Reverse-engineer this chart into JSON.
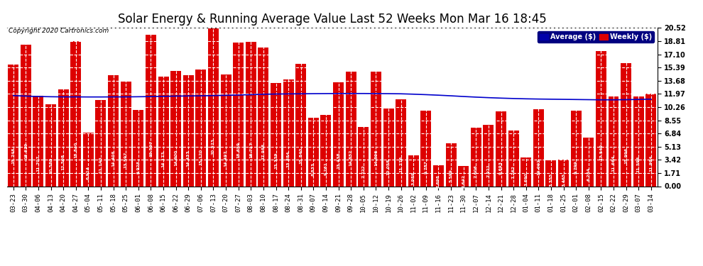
{
  "title": "Solar Energy & Running Average Value Last 52 Weeks Mon Mar 16 18:45",
  "copyright": "Copyright 2020 Cartronics.com",
  "legend_labels": [
    "Average ($)",
    "Weekly ($)"
  ],
  "legend_colors": [
    "#0000aa",
    "#dd0000"
  ],
  "bar_color": "#dd0000",
  "avg_line_color": "#0000cc",
  "background_color": "#ffffff",
  "grid_color": "#aaaaaa",
  "categories": [
    "03-23",
    "03-30",
    "04-06",
    "04-13",
    "04-20",
    "04-27",
    "05-04",
    "05-11",
    "05-18",
    "05-25",
    "06-01",
    "06-08",
    "06-15",
    "06-22",
    "06-29",
    "07-06",
    "07-13",
    "07-20",
    "07-27",
    "08-03",
    "08-10",
    "08-17",
    "08-24",
    "08-31",
    "09-07",
    "09-14",
    "09-21",
    "09-28",
    "10-05",
    "10-12",
    "10-19",
    "10-26",
    "11-02",
    "11-09",
    "11-16",
    "11-23",
    "11-30",
    "12-07",
    "12-14",
    "12-21",
    "12-28",
    "01-04",
    "01-11",
    "01-18",
    "01-25",
    "02-01",
    "02-08",
    "02-15",
    "02-22",
    "02-29",
    "03-07",
    "03-14"
  ],
  "weekly_values": [
    15.748,
    18.329,
    11.707,
    10.58,
    12.508,
    18.84,
    6.914,
    11.14,
    14.408,
    13.597,
    9.928,
    19.597,
    14.173,
    14.9,
    14.433,
    15.12,
    20.523,
    14.497,
    18.659,
    18.717,
    17.988,
    13.339,
    13.884,
    15.84,
    8.833,
    9.261,
    13.438,
    14.852,
    7.722,
    14.896,
    10.058,
    11.276,
    3.989,
    9.787,
    2.698,
    5.599,
    2.642,
    7.606,
    7.921,
    9.693,
    7.262,
    3.69,
    10.002,
    3.355,
    3.465,
    9.799,
    6.284,
    17.549,
    11.664,
    15.996,
    11.594,
    11.994
  ],
  "avg_values": [
    11.75,
    11.68,
    11.63,
    11.6,
    11.58,
    11.58,
    11.57,
    11.57,
    11.58,
    11.58,
    11.6,
    11.62,
    11.65,
    11.68,
    11.7,
    11.72,
    11.75,
    11.78,
    11.82,
    11.87,
    11.92,
    11.95,
    11.97,
    11.98,
    12.0,
    12.01,
    12.02,
    12.02,
    12.02,
    12.01,
    12.0,
    11.98,
    11.93,
    11.87,
    11.8,
    11.72,
    11.63,
    11.55,
    11.48,
    11.42,
    11.37,
    11.33,
    11.3,
    11.28,
    11.26,
    11.24,
    11.22,
    11.2,
    11.2,
    11.22,
    11.25,
    11.28
  ],
  "ylim": [
    0.0,
    20.52
  ],
  "yticks": [
    0.0,
    1.71,
    3.42,
    5.13,
    6.84,
    8.55,
    10.26,
    11.97,
    13.68,
    15.39,
    17.1,
    18.81,
    20.52
  ],
  "title_fontsize": 12,
  "tick_fontsize": 6.5,
  "bar_label_fontsize": 4.3,
  "bar_label_color": "#ffffff",
  "xlabel_rotation": 90
}
